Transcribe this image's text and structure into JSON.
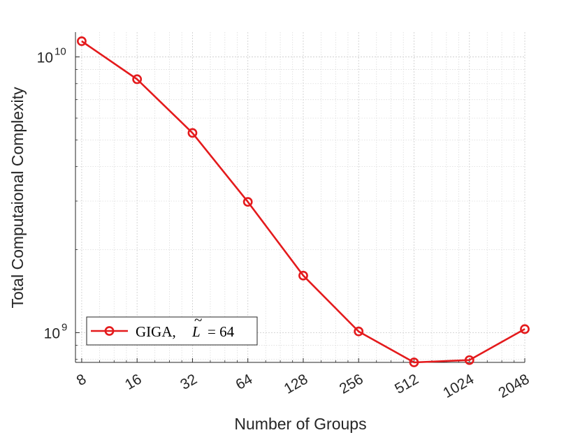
{
  "chart_data": {
    "type": "line",
    "xscale": "log2",
    "yscale": "log10",
    "xlabel": "Number of Groups",
    "ylabel": "Total Computaional Complexity",
    "xlim": [
      7.4,
      2048
    ],
    "ylim": [
      780000000.0,
      12300000000.0
    ],
    "x": [
      8,
      16,
      32,
      64,
      128,
      256,
      512,
      1024,
      2048
    ],
    "x_tick_labels": [
      "8",
      "16",
      "32",
      "64",
      "128",
      "256",
      "512",
      "1024",
      "2048"
    ],
    "y_ticks": [
      {
        "value": 1000000000,
        "base": "10",
        "exp": "9"
      },
      {
        "value": 10000000000,
        "base": "10",
        "exp": "10"
      }
    ],
    "grid": true,
    "legend_position": "bottom-left",
    "series": [
      {
        "name": "GIGA, L = 64",
        "legend_prefix": "GIGA,",
        "legend_var": "L",
        "legend_tilde": "~",
        "legend_suffix": "= 64",
        "color": "#e41a1c",
        "marker": "circle",
        "values": [
          11400000000.0,
          8300000000.0,
          5300000000.0,
          2980000000.0,
          1610000000.0,
          1010000000.0,
          780000000.0,
          795000000.0,
          1030000000.0
        ]
      }
    ]
  }
}
